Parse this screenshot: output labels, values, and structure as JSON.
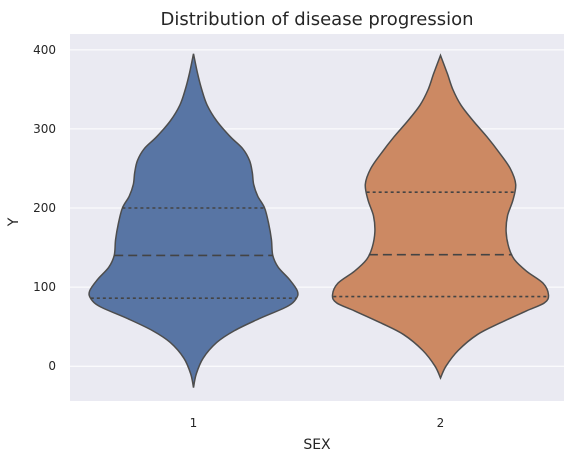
{
  "chart_data": {
    "type": "violin",
    "title": "Distribution of disease progression",
    "xlabel": "SEX",
    "ylabel": "Y",
    "categories": [
      "1",
      "2"
    ],
    "y_ticks": [
      0,
      100,
      200,
      300,
      400
    ],
    "ylim": [
      -44,
      420
    ],
    "grid": true,
    "colors": {
      "background": "#eaeaf2",
      "grid": "#ffffff",
      "outline": "#4d4d4d",
      "series": [
        "#5875a4",
        "#cc8963"
      ]
    },
    "series": [
      {
        "category": "1",
        "color": "#5875a4",
        "quartiles": {
          "q1": 86,
          "median": 140,
          "q3": 200
        },
        "density": [
          [
            -27,
            0
          ],
          [
            -10,
            2
          ],
          [
            10,
            7
          ],
          [
            30,
            17
          ],
          [
            45,
            30
          ],
          [
            60,
            48
          ],
          [
            75,
            68
          ],
          [
            85,
            75
          ],
          [
            95,
            76
          ],
          [
            110,
            70
          ],
          [
            125,
            62
          ],
          [
            140,
            58
          ],
          [
            160,
            57
          ],
          [
            180,
            55
          ],
          [
            200,
            52
          ],
          [
            215,
            47
          ],
          [
            230,
            44
          ],
          [
            245,
            43
          ],
          [
            260,
            41
          ],
          [
            275,
            36
          ],
          [
            290,
            27
          ],
          [
            310,
            17
          ],
          [
            330,
            10
          ],
          [
            350,
            6
          ],
          [
            370,
            3
          ],
          [
            395,
            0
          ]
        ]
      },
      {
        "category": "2",
        "color": "#cc8963",
        "quartiles": {
          "q1": 88,
          "median": 141,
          "q3": 220
        },
        "density": [
          [
            -15,
            0
          ],
          [
            0,
            4
          ],
          [
            20,
            13
          ],
          [
            40,
            27
          ],
          [
            55,
            44
          ],
          [
            70,
            63
          ],
          [
            80,
            76
          ],
          [
            90,
            79
          ],
          [
            105,
            75
          ],
          [
            120,
            63
          ],
          [
            135,
            54
          ],
          [
            150,
            50
          ],
          [
            170,
            48
          ],
          [
            190,
            49
          ],
          [
            210,
            53
          ],
          [
            230,
            55
          ],
          [
            250,
            51
          ],
          [
            270,
            43
          ],
          [
            290,
            34
          ],
          [
            310,
            24
          ],
          [
            330,
            15
          ],
          [
            350,
            9
          ],
          [
            370,
            5
          ],
          [
            393,
            0
          ]
        ]
      }
    ]
  }
}
